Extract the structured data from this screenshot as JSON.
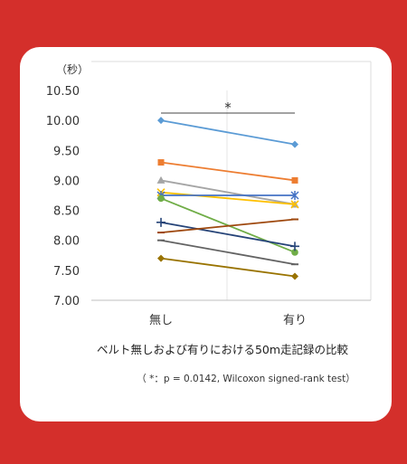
{
  "chart_data": {
    "type": "line",
    "categories": [
      "無し",
      "有り"
    ],
    "ylabel": "（秒）",
    "ylim": [
      7.0,
      10.5
    ],
    "yticks": [
      "7.00",
      "7.50",
      "8.00",
      "8.50",
      "9.00",
      "9.50",
      "10.00",
      "10.50"
    ],
    "xlabel": "ベルト無しおよび有りにおける50m走記録の比較",
    "significance_mark": "*",
    "note": "（ *：p = 0.0142,  Wilcoxon signed-rank test）",
    "grid": false,
    "series": [
      {
        "color": "#5b9bd5",
        "marker": "diamond",
        "values": [
          10.0,
          9.6
        ]
      },
      {
        "color": "#ed7d31",
        "marker": "square",
        "values": [
          9.3,
          9.0
        ]
      },
      {
        "color": "#a5a5a5",
        "marker": "triangle",
        "values": [
          9.0,
          8.6
        ]
      },
      {
        "color": "#ffc000",
        "marker": "x",
        "values": [
          8.8,
          8.6
        ]
      },
      {
        "color": "#4472c4",
        "marker": "star",
        "values": [
          8.75,
          8.75
        ]
      },
      {
        "color": "#70ad47",
        "marker": "circle",
        "values": [
          8.7,
          7.8
        ]
      },
      {
        "color": "#264478",
        "marker": "plus",
        "values": [
          8.3,
          7.9
        ]
      },
      {
        "color": "#9e480e",
        "marker": "dash",
        "values": [
          8.13,
          8.35
        ]
      },
      {
        "color": "#636363",
        "marker": "dash",
        "values": [
          8.0,
          7.6
        ]
      },
      {
        "color": "#997300",
        "marker": "diamond",
        "values": [
          7.7,
          7.4
        ]
      }
    ]
  }
}
